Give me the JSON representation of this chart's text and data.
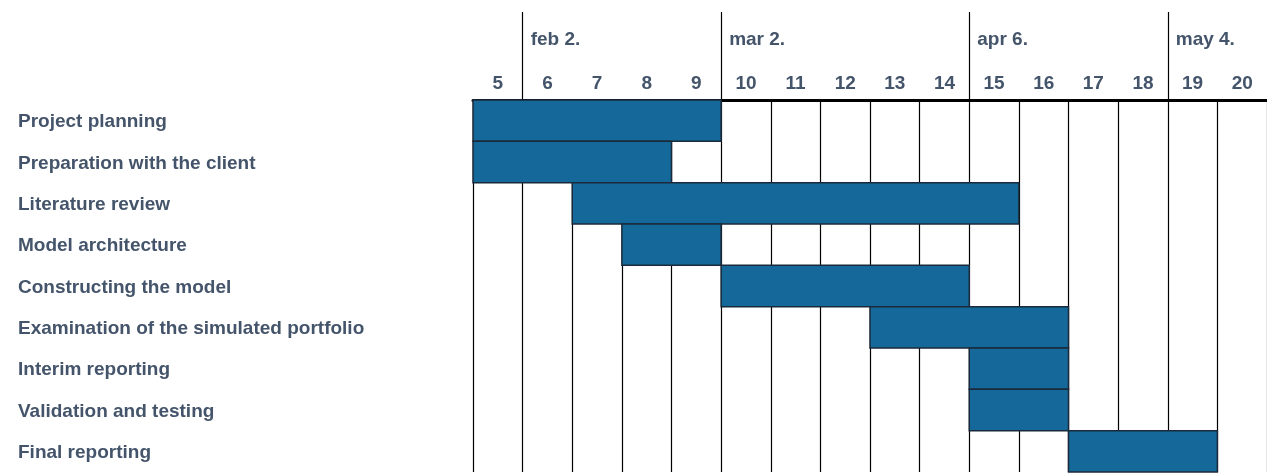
{
  "chart_data": {
    "type": "bar",
    "orientation": "horizontal",
    "categories": [
      "Project planning",
      "Preparation with the client",
      "Literature review",
      "Model architecture",
      "Constructing the model",
      "Examination of the simulated portfolio",
      "Interim reporting",
      "Validation and testing",
      "Final reporting"
    ],
    "base": [
      4.5,
      4.5,
      6.5,
      7.5,
      9.5,
      12.5,
      14.5,
      14.5,
      16.5
    ],
    "values": [
      5,
      4,
      9,
      2,
      5,
      4,
      2,
      2,
      3
    ],
    "color": "#15699a",
    "xlim": [
      4.5,
      20.5
    ],
    "xticks": [
      5,
      6,
      7,
      8,
      9,
      10,
      11,
      12,
      13,
      14,
      15,
      16,
      17,
      18,
      19,
      20
    ],
    "ref_lines": [
      {
        "axis": "x",
        "value": 5.5,
        "label": "feb 2."
      },
      {
        "axis": "x",
        "value": 9.5,
        "label": "mar 2."
      },
      {
        "axis": "x",
        "value": 14.5,
        "label": "apr 6."
      },
      {
        "axis": "x",
        "value": 18.5,
        "label": "may 4."
      }
    ],
    "grid": "x"
  }
}
